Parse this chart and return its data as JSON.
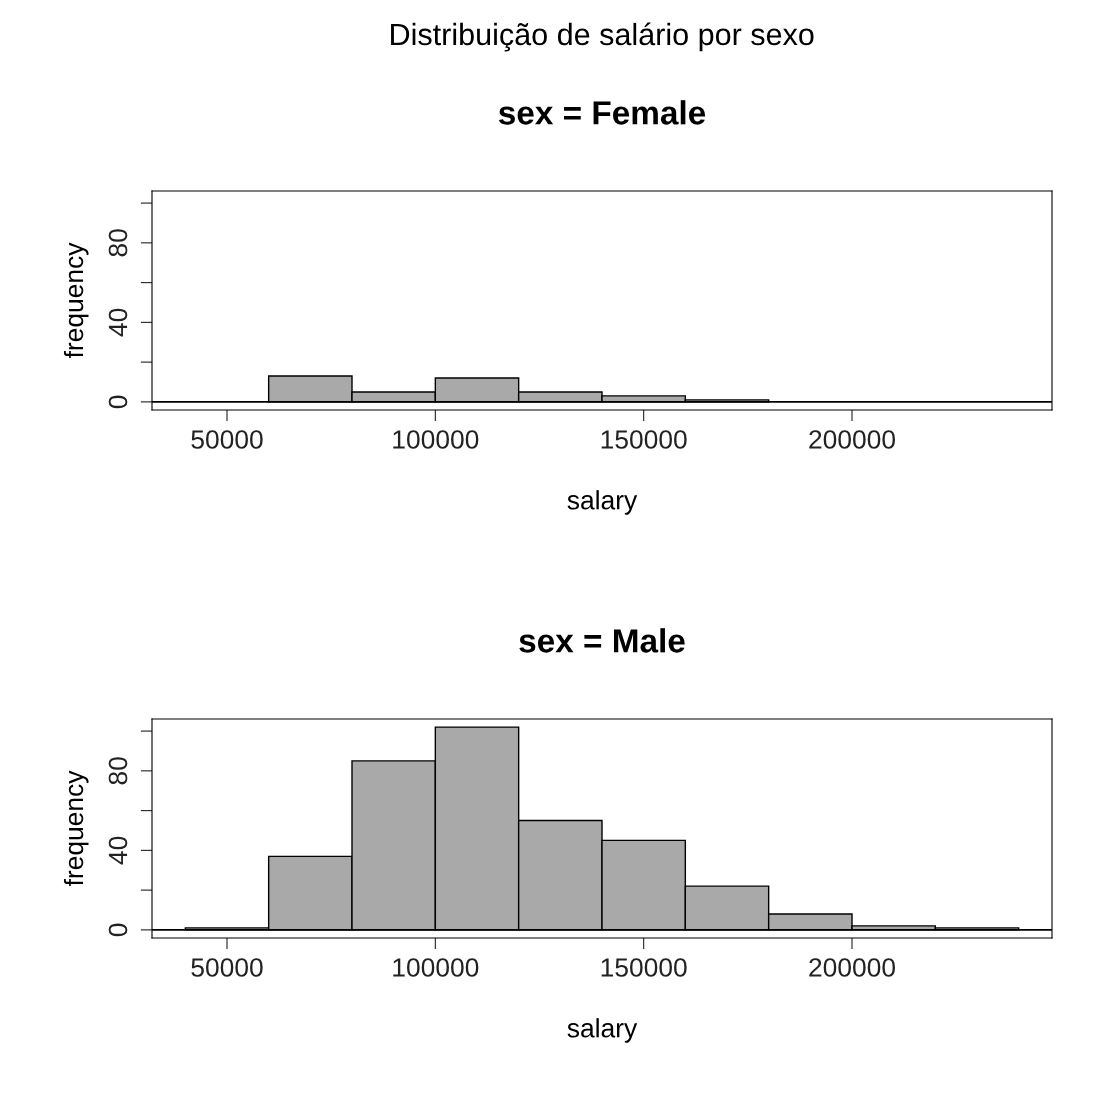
{
  "chart_data": [
    {
      "type": "histogram",
      "title": "sex = Female",
      "xlabel": "salary",
      "ylabel": "frequency",
      "annotations": [
        "Distribuição de salário por sexo"
      ],
      "bins": [
        60000,
        80000,
        100000,
        120000,
        140000,
        160000,
        180000
      ],
      "values": [
        13,
        5,
        12,
        5,
        3,
        1
      ],
      "color": "#a9a9a9",
      "xlim": [
        32000,
        248000
      ],
      "xticks": [
        50000,
        100000,
        150000,
        200000
      ],
      "ylim": [
        -4.08,
        106.08
      ],
      "yticks": [
        0,
        {
          "value": 20,
          "label": null
        },
        40,
        {
          "value": 60,
          "label": null
        },
        80,
        {
          "value": 100,
          "label": null
        }
      ],
      "ref_lines": [
        {
          "axis": "y",
          "value": 0,
          "color": "#000000"
        }
      ],
      "grid": false,
      "legend": false
    },
    {
      "type": "histogram",
      "title": "sex = Male",
      "xlabel": "salary",
      "ylabel": "frequency",
      "bins": [
        40000,
        60000,
        80000,
        100000,
        120000,
        140000,
        160000,
        180000,
        200000,
        220000,
        240000
      ],
      "values": [
        1,
        37,
        85,
        102,
        55,
        45,
        22,
        8,
        2,
        1
      ],
      "color": "#a9a9a9",
      "xlim": [
        32000,
        248000
      ],
      "xticks": [
        50000,
        100000,
        150000,
        200000
      ],
      "ylim": [
        -4.08,
        106.08
      ],
      "yticks": [
        0,
        {
          "value": 20,
          "label": null
        },
        40,
        {
          "value": 60,
          "label": null
        },
        80,
        {
          "value": 100,
          "label": null
        }
      ],
      "ref_lines": [
        {
          "axis": "y",
          "value": 0,
          "color": "#000000"
        }
      ],
      "grid": false,
      "legend": false
    }
  ]
}
